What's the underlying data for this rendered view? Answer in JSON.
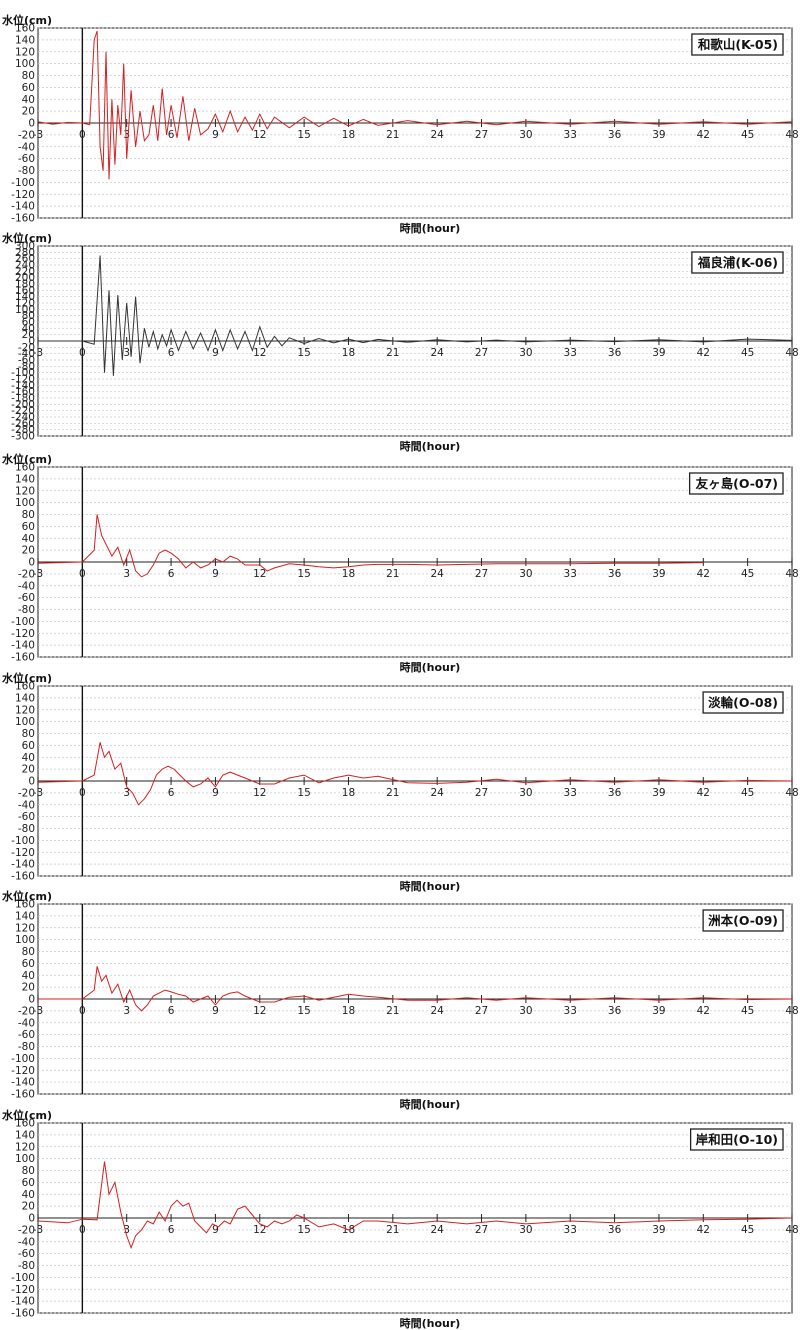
{
  "chart_data": [
    {
      "type": "line",
      "title": "和歌山(K-05)",
      "ylabel": "水位(cm)",
      "xlabel": "時間(hour)",
      "xlim": [
        -3,
        48
      ],
      "ylim": [
        -160,
        160
      ],
      "xticks": [
        "-3",
        "0",
        "3",
        "6",
        "9",
        "12",
        "15",
        "18",
        "21",
        "24",
        "27",
        "30",
        "33",
        "36",
        "39",
        "42",
        "45",
        "48"
      ],
      "yticks": [
        "160",
        "140",
        "120",
        "100",
        "80",
        "60",
        "40",
        "20",
        "0",
        "-20",
        "-40",
        "-60",
        "-80",
        "-100",
        "-120",
        "-140",
        "-160"
      ],
      "color": "#d42020",
      "series": [
        {
          "x": [
            -3,
            -2,
            -1,
            0,
            0.5,
            0.8,
            1.0,
            1.2,
            1.4,
            1.6,
            1.8,
            2.0,
            2.2,
            2.4,
            2.6,
            2.8,
            3.0,
            3.3,
            3.6,
            3.9,
            4.2,
            4.5,
            4.8,
            5.1,
            5.4,
            5.7,
            6.0,
            6.4,
            6.8,
            7.2,
            7.6,
            8.0,
            8.5,
            9,
            9.5,
            10,
            10.5,
            11,
            11.5,
            12,
            12.5,
            13,
            14,
            15,
            16,
            17,
            18,
            19,
            20,
            22,
            24,
            26,
            28,
            30,
            33,
            36,
            39,
            42,
            45,
            48
          ],
          "y": [
            2,
            -2,
            1,
            0,
            -3,
            140,
            155,
            -40,
            -80,
            120,
            -95,
            40,
            -70,
            30,
            -20,
            100,
            -60,
            55,
            -40,
            20,
            -30,
            -20,
            30,
            -30,
            58,
            -20,
            30,
            -25,
            45,
            -30,
            25,
            -20,
            -10,
            15,
            -15,
            20,
            -15,
            10,
            -12,
            15,
            -10,
            10,
            -8,
            10,
            -6,
            8,
            -5,
            6,
            -4,
            4,
            -3,
            3,
            -3,
            3,
            -2,
            3,
            -2,
            2,
            -2,
            2
          ]
        }
      ]
    },
    {
      "type": "line",
      "title": "福良浦(K-06)",
      "ylabel": "水位(cm)",
      "xlabel": "時間(hour)",
      "xlim": [
        -3,
        48
      ],
      "ylim": [
        -300,
        300
      ],
      "xticks": [
        "-3",
        "0",
        "3",
        "6",
        "9",
        "12",
        "15",
        "18",
        "21",
        "24",
        "27",
        "30",
        "33",
        "36",
        "39",
        "42",
        "45",
        "48"
      ],
      "yticks": [
        "300",
        "280",
        "260",
        "240",
        "220",
        "200",
        "180",
        "160",
        "140",
        "120",
        "100",
        "80",
        "60",
        "40",
        "20",
        "0",
        "-20",
        "-40",
        "-60",
        "-80",
        "-100",
        "-120",
        "-140",
        "-160",
        "-180",
        "-200",
        "-220",
        "-240",
        "-260",
        "-280",
        "-300"
      ],
      "color": "#333333",
      "series": [
        {
          "x": [
            -3,
            0,
            0.8,
            1.2,
            1.5,
            1.8,
            2.1,
            2.4,
            2.7,
            3.0,
            3.3,
            3.6,
            3.9,
            4.2,
            4.5,
            4.8,
            5.1,
            5.4,
            5.7,
            6.0,
            6.5,
            7,
            7.5,
            8,
            8.5,
            9,
            9.5,
            10,
            10.5,
            11,
            11.5,
            12,
            12.5,
            13,
            13.5,
            14,
            15,
            16,
            17,
            18,
            19,
            20,
            22,
            24,
            26,
            28,
            30,
            33,
            36,
            39,
            42,
            45,
            48
          ],
          "y": [
            0,
            0,
            -10,
            270,
            -100,
            160,
            -110,
            145,
            -60,
            120,
            -50,
            140,
            -70,
            40,
            -20,
            30,
            -25,
            20,
            -15,
            35,
            -30,
            30,
            -25,
            25,
            -30,
            35,
            -30,
            35,
            -25,
            30,
            -30,
            45,
            -20,
            15,
            -15,
            10,
            -8,
            8,
            -6,
            6,
            -5,
            5,
            -4,
            4,
            -3,
            3,
            -3,
            3,
            -2,
            4,
            -3,
            6,
            2
          ]
        }
      ]
    },
    {
      "type": "line",
      "title": "友ヶ島(O-07)",
      "ylabel": "水位(cm)",
      "xlabel": "時間(hour)",
      "xlim": [
        -3,
        48
      ],
      "ylim": [
        -160,
        160
      ],
      "xticks": [
        "-3",
        "0",
        "3",
        "6",
        "9",
        "12",
        "15",
        "18",
        "21",
        "24",
        "27",
        "30",
        "33",
        "36",
        "39",
        "42",
        "45",
        "48"
      ],
      "yticks": [
        "160",
        "140",
        "120",
        "100",
        "80",
        "60",
        "40",
        "20",
        "0",
        "-20",
        "-40",
        "-60",
        "-80",
        "-100",
        "-120",
        "-140",
        "-160"
      ],
      "color": "#d42020",
      "series": [
        {
          "x": [
            -3,
            0,
            0.8,
            1.0,
            1.3,
            1.6,
            2.0,
            2.4,
            2.8,
            3.2,
            3.6,
            4.0,
            4.4,
            4.8,
            5.2,
            5.6,
            6.0,
            6.5,
            7,
            7.5,
            8,
            8.5,
            9,
            9.5,
            10,
            10.5,
            11,
            12,
            12.5,
            13,
            14,
            15,
            16,
            17,
            18,
            19,
            20,
            22,
            24,
            26,
            28,
            30,
            33,
            36,
            39,
            42
          ],
          "y": [
            -2,
            0,
            20,
            80,
            45,
            30,
            10,
            25,
            -5,
            20,
            -15,
            -25,
            -20,
            -5,
            15,
            20,
            15,
            5,
            -10,
            0,
            -10,
            -5,
            5,
            0,
            10,
            5,
            -5,
            -5,
            -15,
            -10,
            -3,
            -5,
            -8,
            -10,
            -8,
            -5,
            -4,
            -4,
            -5,
            -4,
            -3,
            -3,
            -3,
            -2,
            -2,
            -1
          ]
        }
      ]
    },
    {
      "type": "line",
      "title": "淡輪(O-08)",
      "ylabel": "水位(cm)",
      "xlabel": "時間(hour)",
      "xlim": [
        -3,
        48
      ],
      "ylim": [
        -160,
        160
      ],
      "xticks": [
        "-3",
        "0",
        "3",
        "6",
        "9",
        "12",
        "15",
        "18",
        "21",
        "24",
        "27",
        "30",
        "33",
        "36",
        "39",
        "42",
        "45",
        "48"
      ],
      "yticks": [
        "160",
        "140",
        "120",
        "100",
        "80",
        "60",
        "40",
        "20",
        "0",
        "-20",
        "-40",
        "-60",
        "-80",
        "-100",
        "-120",
        "-140",
        "-160"
      ],
      "color": "#d42020",
      "series": [
        {
          "x": [
            -3,
            0,
            0.8,
            1.2,
            1.5,
            1.8,
            2.2,
            2.6,
            3.0,
            3.4,
            3.8,
            4.2,
            4.6,
            5.0,
            5.4,
            5.8,
            6.2,
            6.6,
            7.0,
            7.5,
            8,
            8.5,
            9,
            9.5,
            10,
            10.5,
            11,
            12,
            13,
            14,
            15,
            16,
            17,
            18,
            19,
            20,
            22,
            24,
            26,
            28,
            30,
            33,
            36,
            39,
            42,
            45,
            48
          ],
          "y": [
            -2,
            0,
            10,
            65,
            40,
            50,
            20,
            30,
            -10,
            -20,
            -40,
            -30,
            -15,
            10,
            20,
            25,
            20,
            10,
            0,
            -10,
            -5,
            5,
            -10,
            10,
            15,
            10,
            5,
            -5,
            -5,
            5,
            10,
            -3,
            5,
            10,
            5,
            8,
            -3,
            -4,
            -2,
            3,
            -3,
            2,
            -2,
            2,
            -2,
            1,
            0
          ]
        }
      ]
    },
    {
      "type": "line",
      "title": "洲本(O-09)",
      "ylabel": "水位(cm)",
      "xlabel": "時間(hour)",
      "xlim": [
        -3,
        48
      ],
      "ylim": [
        -160,
        160
      ],
      "xticks": [
        "-3",
        "0",
        "3",
        "6",
        "9",
        "12",
        "15",
        "18",
        "21",
        "24",
        "27",
        "30",
        "33",
        "36",
        "39",
        "42",
        "45",
        "48"
      ],
      "yticks": [
        "160",
        "140",
        "120",
        "100",
        "80",
        "60",
        "40",
        "20",
        "0",
        "-20",
        "-40",
        "-60",
        "-80",
        "-100",
        "-120",
        "-140",
        "-160"
      ],
      "color": "#d42020",
      "series": [
        {
          "x": [
            -3,
            0,
            0.8,
            1.0,
            1.3,
            1.6,
            2.0,
            2.4,
            2.8,
            3.2,
            3.6,
            4.0,
            4.4,
            4.8,
            5.2,
            5.6,
            6.0,
            6.5,
            7,
            7.5,
            8,
            8.5,
            9,
            9.5,
            10,
            10.5,
            11,
            12,
            13,
            14,
            15,
            16,
            17,
            18,
            19,
            20,
            22,
            24,
            26,
            28,
            30,
            33,
            36,
            39,
            42,
            45,
            48
          ],
          "y": [
            0,
            0,
            15,
            55,
            30,
            40,
            10,
            25,
            -5,
            15,
            -10,
            -20,
            -10,
            5,
            10,
            15,
            12,
            8,
            5,
            -5,
            0,
            5,
            -10,
            5,
            10,
            12,
            5,
            -5,
            -5,
            3,
            5,
            -2,
            3,
            8,
            5,
            3,
            -2,
            -2,
            2,
            -2,
            2,
            -2,
            2,
            -2,
            2,
            -1,
            0
          ]
        }
      ]
    },
    {
      "type": "line",
      "title": "岸和田(O-10)",
      "ylabel": "水位(cm)",
      "xlabel": "時間(hour)",
      "xlim": [
        -3,
        48
      ],
      "ylim": [
        -160,
        160
      ],
      "xticks": [
        "-3",
        "0",
        "3",
        "6",
        "9",
        "12",
        "15",
        "18",
        "21",
        "24",
        "27",
        "30",
        "33",
        "36",
        "39",
        "42",
        "45",
        "48"
      ],
      "yticks": [
        "160",
        "140",
        "120",
        "100",
        "80",
        "60",
        "40",
        "20",
        "0",
        "-20",
        "-40",
        "-60",
        "-80",
        "-100",
        "-120",
        "-140",
        "-160"
      ],
      "color": "#d42020",
      "series": [
        {
          "x": [
            -3,
            -1,
            0,
            1,
            1.5,
            1.8,
            2.2,
            2.6,
            3.0,
            3.3,
            3.6,
            4.0,
            4.4,
            4.8,
            5.2,
            5.6,
            6.0,
            6.4,
            6.8,
            7.2,
            7.6,
            8.0,
            8.4,
            8.8,
            9.2,
            9.6,
            10,
            10.5,
            11,
            11.5,
            12,
            12.5,
            13,
            13.5,
            14,
            14.5,
            15,
            16,
            17,
            18,
            19,
            20,
            22,
            24,
            26,
            28,
            30,
            33,
            36,
            39,
            42,
            45,
            48
          ],
          "y": [
            -5,
            -8,
            -2,
            -3,
            95,
            40,
            60,
            10,
            -30,
            -50,
            -30,
            -20,
            -5,
            -10,
            10,
            -5,
            20,
            30,
            20,
            25,
            -5,
            -15,
            -25,
            -10,
            -15,
            -5,
            -10,
            15,
            20,
            5,
            -10,
            -15,
            -5,
            -10,
            -5,
            5,
            0,
            -15,
            -10,
            -20,
            -5,
            -5,
            -10,
            -5,
            -10,
            -5,
            -10,
            -5,
            -8,
            -5,
            -3,
            -2,
            0
          ]
        }
      ]
    }
  ]
}
